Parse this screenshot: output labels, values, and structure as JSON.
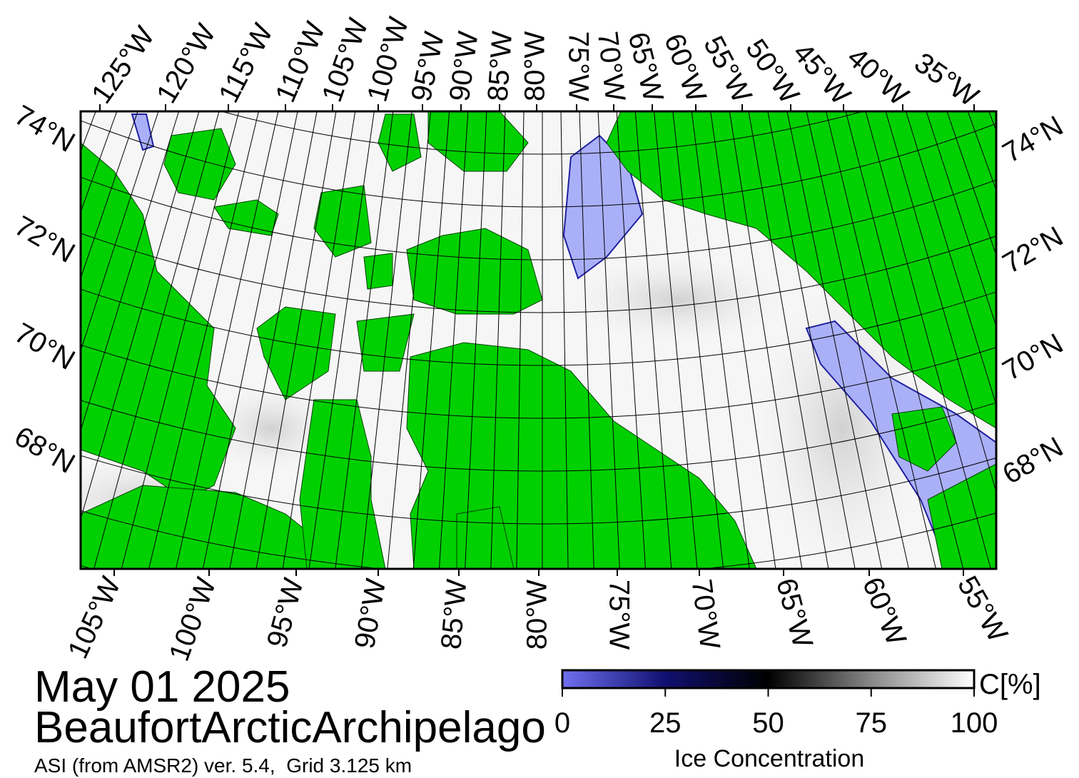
{
  "date": "May 01 2025",
  "region": "BeaufortArcticArchipelago",
  "source": "ASI (from AMSR2) ver. 5.4,  Grid 3.125 km",
  "map": {
    "top_labels": [
      "125°W",
      "120°W",
      "115°W",
      "110°W",
      "105°W",
      "100°W",
      "95°W",
      "90°W",
      "85°W",
      "80°W",
      "75°W",
      "70°W",
      "65°W",
      "60°W",
      "55°W",
      "50°W",
      "45°W",
      "40°W",
      "35°W"
    ],
    "bottom_labels": [
      "105°W",
      "100°W",
      "95°W",
      "90°W",
      "85°W",
      "80°W",
      "75°W",
      "70°W",
      "65°W",
      "60°W",
      "55°W"
    ],
    "left_labels": [
      "74°N",
      "72°N",
      "70°N",
      "68°N"
    ],
    "right_labels": [
      "74°N",
      "72°N",
      "70°N",
      "68°N"
    ]
  },
  "colorbar": {
    "label": "Ice Concentration",
    "unit": "C[%]",
    "lim": [
      0,
      100
    ],
    "ticks": [
      0,
      25,
      50,
      75,
      100
    ]
  }
}
